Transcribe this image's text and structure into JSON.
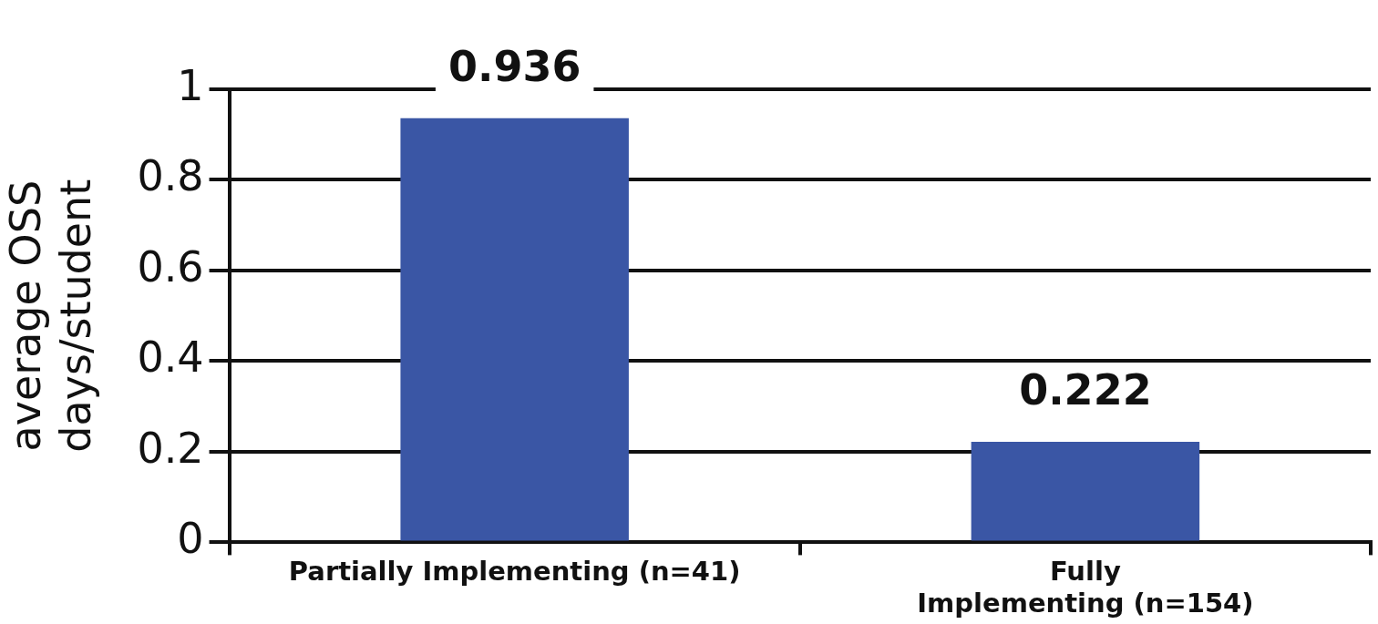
{
  "chart_data": {
    "type": "bar",
    "ylabel": "average OSS\ndays/student",
    "categories": [
      "Partially Implementing (n=41)",
      "Fully\nImplementing (n=154)"
    ],
    "values": [
      0.936,
      0.222
    ],
    "color": "#3a56a5",
    "ylim": [
      0,
      1
    ],
    "yticks": [
      0,
      0.2,
      0.4,
      0.6,
      0.8,
      1
    ],
    "grid": "y",
    "data_labels": true,
    "legend": false
  }
}
